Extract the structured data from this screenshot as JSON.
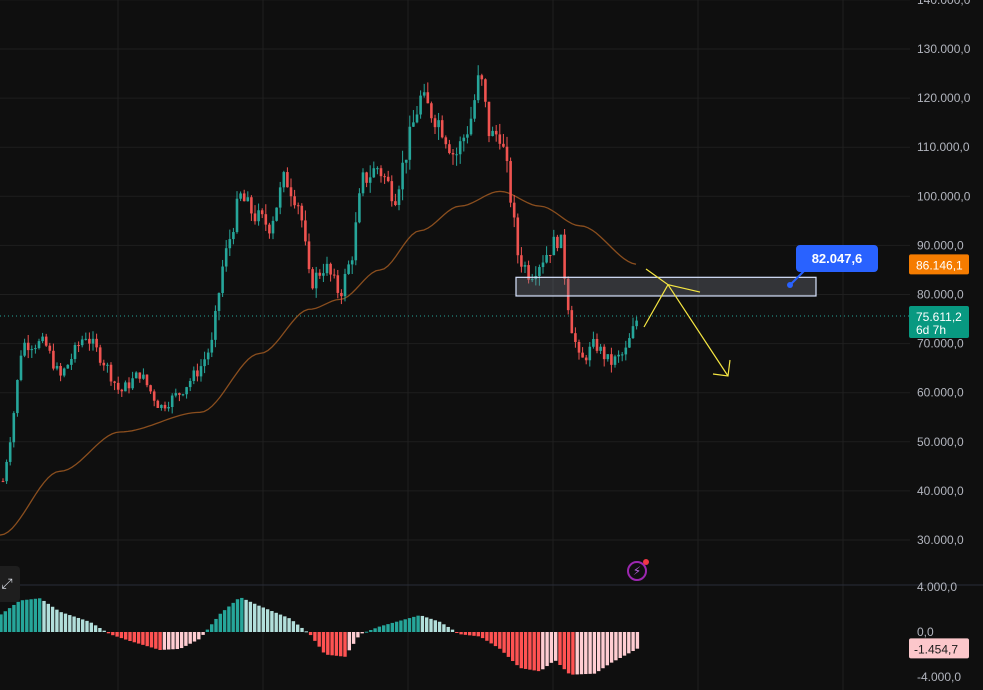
{
  "chart_data": [
    {
      "type": "candlestick",
      "y_axis": {
        "ticks": [
          "140.000,0",
          "130.000,0",
          "120.000,0",
          "110.000,0",
          "100.000,0",
          "90.000,0",
          "80.000,0",
          "70.000,0",
          "60.000,0",
          "50.000,0",
          "40.000,0",
          "30.000,0"
        ],
        "tick_values": [
          140000,
          130000,
          120000,
          110000,
          100000,
          90000,
          80000,
          70000,
          60000,
          50000,
          40000,
          30000
        ],
        "position": "right"
      },
      "ylim": [
        24000,
        140000
      ],
      "grid": true,
      "last_price_label": "75.611,2",
      "countdown_label": "6d 7h",
      "last_price": 75611.2,
      "ma_label": "86.146,1",
      "ma_value": 86146.1,
      "drawing_price_label": "82.047,6",
      "drawing_zone": [
        79700,
        83500
      ],
      "colors": {
        "up": "#26a69a",
        "down": "#ef5350",
        "ma": "#8a4e1e",
        "zone_border": "#d8e4ff",
        "drawing": "#f5e642",
        "label_blue": "#2962ff",
        "label_orange": "#f57c00",
        "label_teal": "#089981",
        "label_pink": "#fcc7cb"
      }
    },
    {
      "type": "histogram",
      "y_axis": {
        "ticks": [
          "4.000,0",
          "0,0",
          "-4.000,0"
        ],
        "tick_values": [
          4000,
          0,
          -4000
        ]
      },
      "ylim": [
        -4000,
        4000
      ],
      "current_label": "-1.454,7",
      "current_value": -1454.7
    }
  ],
  "ui": {
    "expand_icon": "expand-diagonal-icon",
    "alert_icon": "lightning-alert-icon"
  }
}
